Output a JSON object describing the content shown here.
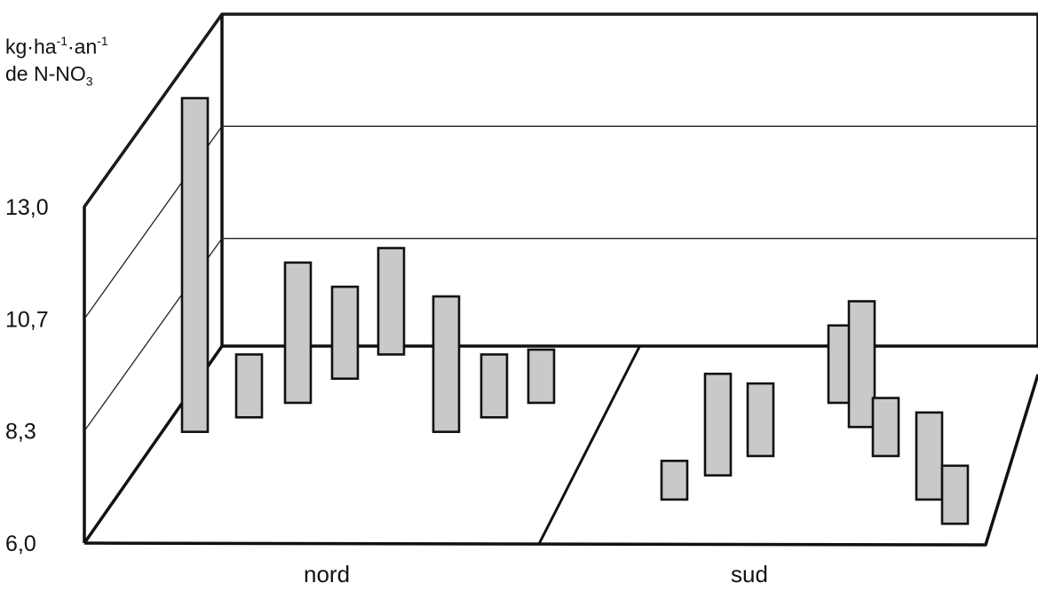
{
  "chart_data": {
    "type": "bar",
    "style": "3d-floating-bars (range bars showing low-high span)",
    "ylabel_line1": {
      "a": "kg·ha",
      "sup1": "-1",
      "b": "·an",
      "sup2": "-1"
    },
    "ylabel_line2": {
      "a": "de N-NO",
      "sub": "3"
    },
    "y_ticks": [
      "6,0",
      "8,3",
      "10,7",
      "13,0"
    ],
    "ylim": [
      6.0,
      13.0
    ],
    "categories": [
      "nord",
      "sud"
    ],
    "series": [
      {
        "group": "nord",
        "ranges": [
          {
            "low": 8.3,
            "high": 15.2
          },
          {
            "low": 8.6,
            "high": 9.9
          },
          {
            "low": 8.9,
            "high": 11.8
          },
          {
            "low": 9.4,
            "high": 11.3
          },
          {
            "low": 9.9,
            "high": 12.1
          },
          {
            "low": 8.3,
            "high": 11.1
          },
          {
            "low": 8.6,
            "high": 9.9
          },
          {
            "low": 8.9,
            "high": 10.0
          }
        ]
      },
      {
        "group": "sud",
        "ranges": [
          {
            "low": 6.9,
            "high": 7.7
          },
          {
            "low": 7.4,
            "high": 9.5
          },
          {
            "low": 7.8,
            "high": 9.3
          },
          {
            "low": 8.9,
            "high": 10.5
          },
          {
            "low": 8.4,
            "high": 11.0
          },
          {
            "low": 7.8,
            "high": 9.0
          },
          {
            "low": 6.9,
            "high": 8.7
          },
          {
            "low": 6.4,
            "high": 7.6
          }
        ]
      }
    ],
    "grid": true,
    "legend": "none"
  }
}
